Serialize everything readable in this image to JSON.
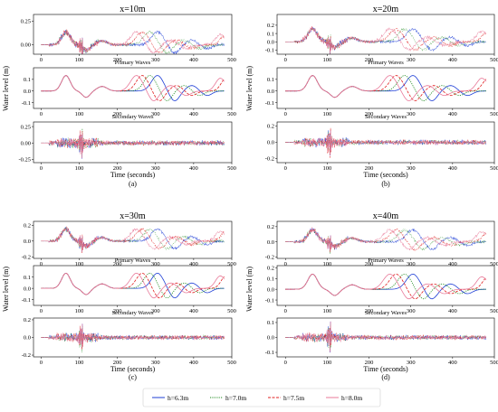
{
  "chart_data": {
    "type": "line",
    "layout": "2x2 grid of panel groups, each with 3 stacked line plots (total, primary waves, secondary waves)",
    "series_styles": [
      {
        "name": "h=6.3m",
        "color": "#1f3fd6",
        "dash": "solid"
      },
      {
        "name": "h=7.0m",
        "color": "#1f8a1f",
        "dash": "dotted"
      },
      {
        "name": "h=7.5m",
        "color": "#e02020",
        "dash": "dashed"
      },
      {
        "name": "h=8.0m",
        "color": "#e87a9a",
        "dash": "solid"
      }
    ],
    "legend": {
      "placement": "bottom-center",
      "entries": [
        "h=6.3m",
        "h=7.0m",
        "h=7.5m",
        "h=8.0m"
      ]
    },
    "xlabel": "Time (seconds)",
    "ylabel": "Water level (m)",
    "xlim": [
      -20,
      500
    ],
    "xticks": [
      "0",
      "100",
      "200",
      "300",
      "400",
      "500"
    ],
    "sub_titles": {
      "primary": "Primary Waves",
      "secondary": "Secondary Waves"
    },
    "peak_times": {
      "h=6.3m": 305,
      "h=7.0m": 285,
      "h=7.5m": 265,
      "h=8.0m": 250
    },
    "groups": [
      {
        "title": "x=10m",
        "caption": "(a)",
        "panels": [
          {
            "kind": "total",
            "ylim": [
              -0.1,
              0.32
            ],
            "yticks": [
              "-0.25",
              "0.00",
              "0.25"
            ],
            "ytick_values": [
              -0.25,
              0.0,
              0.25
            ]
          },
          {
            "kind": "primary",
            "ylim": [
              -0.15,
              0.2
            ],
            "yticks": [
              "0.1",
              "0.0",
              "-0.1"
            ],
            "ytick_values": [
              0.1,
              0.0,
              -0.1
            ]
          },
          {
            "kind": "secondary",
            "ylim": [
              -0.3,
              0.32
            ],
            "yticks": [
              "0.25",
              "0.00",
              "-0.25"
            ],
            "ytick_values": [
              0.25,
              0.0,
              -0.25
            ]
          }
        ]
      },
      {
        "title": "x=20m",
        "caption": "(b)",
        "panels": [
          {
            "kind": "total",
            "ylim": [
              -0.15,
              0.33
            ],
            "yticks": [
              "0.2",
              "0.1",
              "0.0",
              "-0.1"
            ],
            "ytick_values": [
              0.2,
              0.1,
              0.0,
              -0.1
            ]
          },
          {
            "kind": "primary",
            "ylim": [
              -0.15,
              0.2
            ],
            "yticks": [
              "0.1",
              "0.0",
              "-0.1"
            ],
            "ytick_values": [
              0.1,
              0.0,
              -0.1
            ]
          },
          {
            "kind": "secondary",
            "ylim": [
              -0.25,
              0.25
            ],
            "yticks": [
              "0.2",
              "0.0",
              "-0.2"
            ],
            "ytick_values": [
              0.2,
              0.0,
              -0.2
            ]
          }
        ]
      },
      {
        "title": "x=30m",
        "caption": "(c)",
        "panels": [
          {
            "kind": "total",
            "ylim": [
              -0.22,
              0.25
            ],
            "yticks": [
              "0.2",
              "0.0",
              "-0.2"
            ],
            "ytick_values": [
              0.2,
              0.0,
              -0.2
            ]
          },
          {
            "kind": "primary",
            "ylim": [
              -0.15,
              0.2
            ],
            "yticks": [
              "0.1",
              "0.0",
              "-0.1"
            ],
            "ytick_values": [
              0.1,
              0.0,
              -0.1
            ]
          },
          {
            "kind": "secondary",
            "ylim": [
              -0.22,
              0.22
            ],
            "yticks": [
              "0.2",
              "0.0",
              "-0.2"
            ],
            "ytick_values": [
              0.2,
              0.0,
              -0.2
            ]
          }
        ]
      },
      {
        "title": "x=40m",
        "caption": "(d)",
        "panels": [
          {
            "kind": "total",
            "ylim": [
              -0.22,
              0.27
            ],
            "yticks": [
              "0.2",
              "0.0",
              "-0.2"
            ],
            "ytick_values": [
              0.2,
              0.0,
              -0.2
            ]
          },
          {
            "kind": "primary",
            "ylim": [
              -0.15,
              0.22
            ],
            "yticks": [
              "0.2",
              "0.1",
              "0.0",
              "-0.1"
            ],
            "ytick_values": [
              0.2,
              0.1,
              0.0,
              -0.1
            ]
          },
          {
            "kind": "secondary",
            "ylim": [
              -0.13,
              0.13
            ],
            "yticks": [
              "0.1",
              "0.0",
              "-0.1"
            ],
            "ytick_values": [
              0.1,
              0.0,
              -0.1
            ]
          }
        ]
      }
    ]
  }
}
